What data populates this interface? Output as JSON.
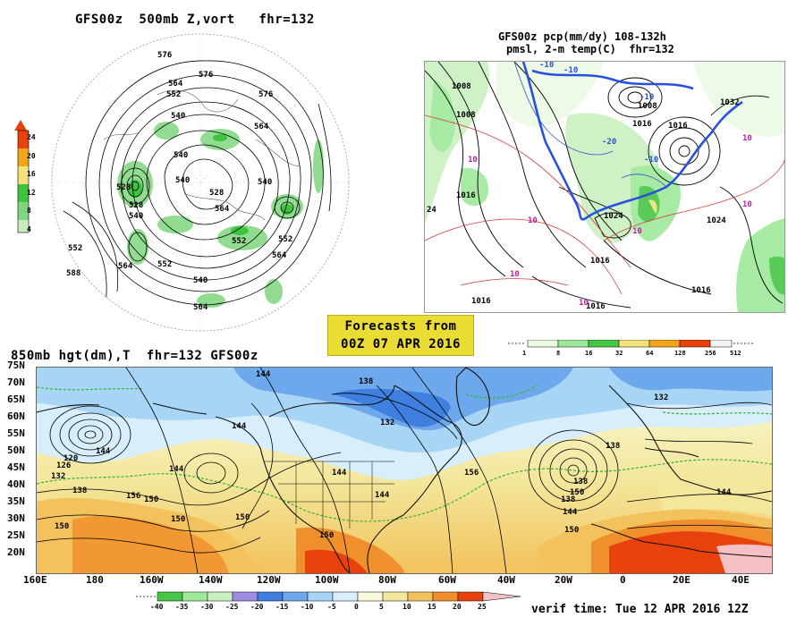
{
  "top_left": {
    "title": "GFS00z  500mb Z,vort   fhr=132",
    "colorbar": {
      "labels": [
        "24",
        "20",
        "16",
        "12",
        "8",
        "4"
      ],
      "colors": [
        "#e8420c",
        "#f3a51a",
        "#f3e17c",
        "#3ec43e",
        "#7ed67e",
        "#c6ecc0"
      ]
    },
    "contour_labels": [
      "576",
      "564",
      "576",
      "552",
      "540",
      "564",
      "528",
      "540",
      "540",
      "528",
      "540",
      "528",
      "564",
      "540",
      "552",
      "564",
      "552",
      "564",
      "552",
      "564",
      "540",
      "552",
      "576",
      "588"
    ]
  },
  "top_right": {
    "title_line1": "GFS00z pcp(mm/dy) 108-132h",
    "title_line2": "pmsl, 2-m temp(C)  fhr=132",
    "isobar_labels": [
      "1008",
      "1008",
      "1016",
      "1016",
      "1024",
      "1024",
      "1016",
      "1016",
      "1016",
      "1016",
      "1032",
      "1016",
      "1008",
      "24"
    ],
    "temp_labels": [
      "-10",
      "-10",
      "-20",
      "-10",
      "10",
      "10",
      "10",
      "10",
      "10",
      "10",
      "-10",
      "10"
    ],
    "colorbar": {
      "labels": [
        "1",
        "8",
        "16",
        "32",
        "64",
        "128",
        "256",
        "512"
      ],
      "colors": [
        "#eafae4",
        "#9ee89a",
        "#46c646",
        "#f3e17c",
        "#f3a51a",
        "#e8420c",
        "#f6f0f4"
      ]
    }
  },
  "banner": {
    "line1": "Forecasts from",
    "line2": "00Z 07 APR 2016"
  },
  "bottom": {
    "title": "850mb hgt(dm),T  fhr=132 GFS00z",
    "lat_labels": [
      "75N",
      "70N",
      "65N",
      "60N",
      "55N",
      "50N",
      "45N",
      "40N",
      "35N",
      "30N",
      "25N",
      "20N"
    ],
    "lon_labels": [
      "160E",
      "180",
      "160W",
      "140W",
      "120W",
      "100W",
      "80W",
      "60W",
      "40W",
      "20W",
      "0",
      "20E",
      "40E"
    ],
    "contour_labels": [
      "144",
      "138",
      "132",
      "144",
      "120",
      "126",
      "132",
      "138",
      "144",
      "150",
      "144",
      "150",
      "150",
      "144",
      "138",
      "150",
      "132",
      "138",
      "144",
      "150",
      "138",
      "144",
      "150",
      "156",
      "156",
      "144",
      "150"
    ],
    "colorbar": {
      "labels": [
        "-40",
        "-35",
        "-30",
        "-25",
        "-20",
        "-15",
        "-10",
        "-5",
        "0",
        "5",
        "10",
        "15",
        "20",
        "25"
      ],
      "colors": [
        "#46c646",
        "#9ee89a",
        "#c9f0c0",
        "#a08ce0",
        "#3e7fe0",
        "#6ea8ec",
        "#a8d4f6",
        "#d8eefa",
        "#fafadc",
        "#f3e79c",
        "#f3c25c",
        "#f0902c",
        "#e8420c",
        "#f4c0c4"
      ]
    },
    "verif_time": "verif time: Tue 12 APR 2016 12Z"
  }
}
